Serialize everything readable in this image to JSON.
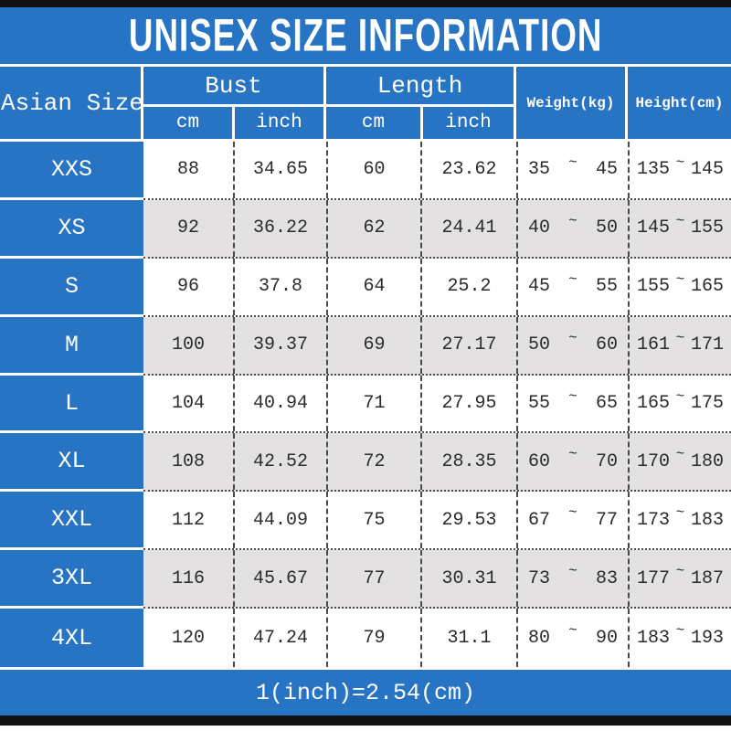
{
  "tilde": "~",
  "colors": {
    "accent_blue": "#2874c4",
    "row_alt_gray": "#e3e1e2",
    "bar_black": "#121212",
    "data_text": "#2b2b2b",
    "header_text": "#ffffff"
  },
  "header": {
    "size_column": "Asian Size",
    "groups": [
      {
        "label": "Bust",
        "subcolumns": [
          "cm",
          "inch"
        ]
      },
      {
        "label": "Length",
        "subcolumns": [
          "cm",
          "inch"
        ]
      }
    ],
    "spanning_columns": [
      "Weight(kg)",
      "Height(cm)"
    ]
  },
  "chart_data": {
    "type": "table",
    "title": "UNISEX SIZE INFORMATION",
    "note": "1(inch)=2.54(cm)",
    "columns": [
      "Asian Size",
      "Bust cm",
      "Bust inch",
      "Length cm",
      "Length inch",
      "Weight(kg)",
      "Height(cm)"
    ],
    "rows": [
      {
        "size": "XXS",
        "bust_cm": "88",
        "bust_inch": "34.65",
        "length_cm": "60",
        "length_inch": "23.62",
        "weight_min": "35",
        "weight_max": "45",
        "height_min": "135",
        "height_max": "145"
      },
      {
        "size": "XS",
        "bust_cm": "92",
        "bust_inch": "36.22",
        "length_cm": "62",
        "length_inch": "24.41",
        "weight_min": "40",
        "weight_max": "50",
        "height_min": "145",
        "height_max": "155"
      },
      {
        "size": "S",
        "bust_cm": "96",
        "bust_inch": "37.8",
        "length_cm": "64",
        "length_inch": "25.2",
        "weight_min": "45",
        "weight_max": "55",
        "height_min": "155",
        "height_max": "165"
      },
      {
        "size": "M",
        "bust_cm": "100",
        "bust_inch": "39.37",
        "length_cm": "69",
        "length_inch": "27.17",
        "weight_min": "50",
        "weight_max": "60",
        "height_min": "161",
        "height_max": "171"
      },
      {
        "size": "L",
        "bust_cm": "104",
        "bust_inch": "40.94",
        "length_cm": "71",
        "length_inch": "27.95",
        "weight_min": "55",
        "weight_max": "65",
        "height_min": "165",
        "height_max": "175"
      },
      {
        "size": "XL",
        "bust_cm": "108",
        "bust_inch": "42.52",
        "length_cm": "72",
        "length_inch": "28.35",
        "weight_min": "60",
        "weight_max": "70",
        "height_min": "170",
        "height_max": "180"
      },
      {
        "size": "XXL",
        "bust_cm": "112",
        "bust_inch": "44.09",
        "length_cm": "75",
        "length_inch": "29.53",
        "weight_min": "67",
        "weight_max": "77",
        "height_min": "173",
        "height_max": "183"
      },
      {
        "size": "3XL",
        "bust_cm": "116",
        "bust_inch": "45.67",
        "length_cm": "77",
        "length_inch": "30.31",
        "weight_min": "73",
        "weight_max": "83",
        "height_min": "177",
        "height_max": "187"
      },
      {
        "size": "4XL",
        "bust_cm": "120",
        "bust_inch": "47.24",
        "length_cm": "79",
        "length_inch": "31.1",
        "weight_min": "80",
        "weight_max": "90",
        "height_min": "183",
        "height_max": "193"
      }
    ]
  }
}
